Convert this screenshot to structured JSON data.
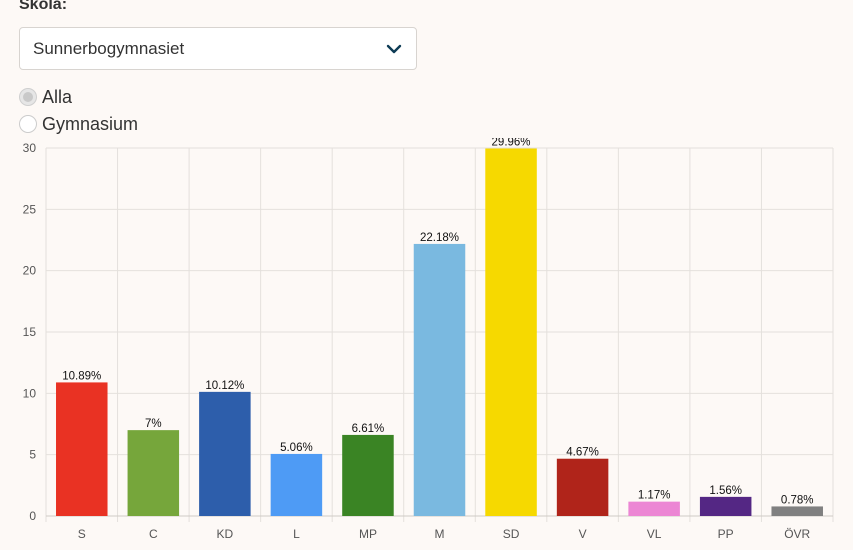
{
  "form": {
    "school_label": "Skola:",
    "school_selected": "Sunnerbogymnasiet",
    "radio_options": [
      {
        "label": "Alla",
        "checked": true
      },
      {
        "label": "Gymnasium",
        "checked": false
      }
    ]
  },
  "chart_data": {
    "type": "bar",
    "categories": [
      "S",
      "C",
      "KD",
      "L",
      "MP",
      "M",
      "SD",
      "V",
      "VL",
      "PP",
      "ÖVR"
    ],
    "values": [
      10.89,
      7,
      10.12,
      5.06,
      6.61,
      22.18,
      29.96,
      4.67,
      1.17,
      1.56,
      0.78
    ],
    "value_labels": [
      "10.89%",
      "7%",
      "10.12%",
      "5.06%",
      "6.61%",
      "22.18%",
      "29.96%",
      "4.67%",
      "1.17%",
      "1.56%",
      "0.78%"
    ],
    "colors": [
      "#e93223",
      "#76a63b",
      "#2d5eab",
      "#4e9bf5",
      "#3a8424",
      "#7ab9e0",
      "#f6d900",
      "#b0241a",
      "#ec86d4",
      "#542784",
      "#808080"
    ],
    "ylim": [
      0,
      30
    ],
    "yticks": [
      "0",
      "5",
      "10",
      "15",
      "20",
      "25",
      "30"
    ],
    "grid": true,
    "title": "",
    "xlabel": "",
    "ylabel": ""
  }
}
